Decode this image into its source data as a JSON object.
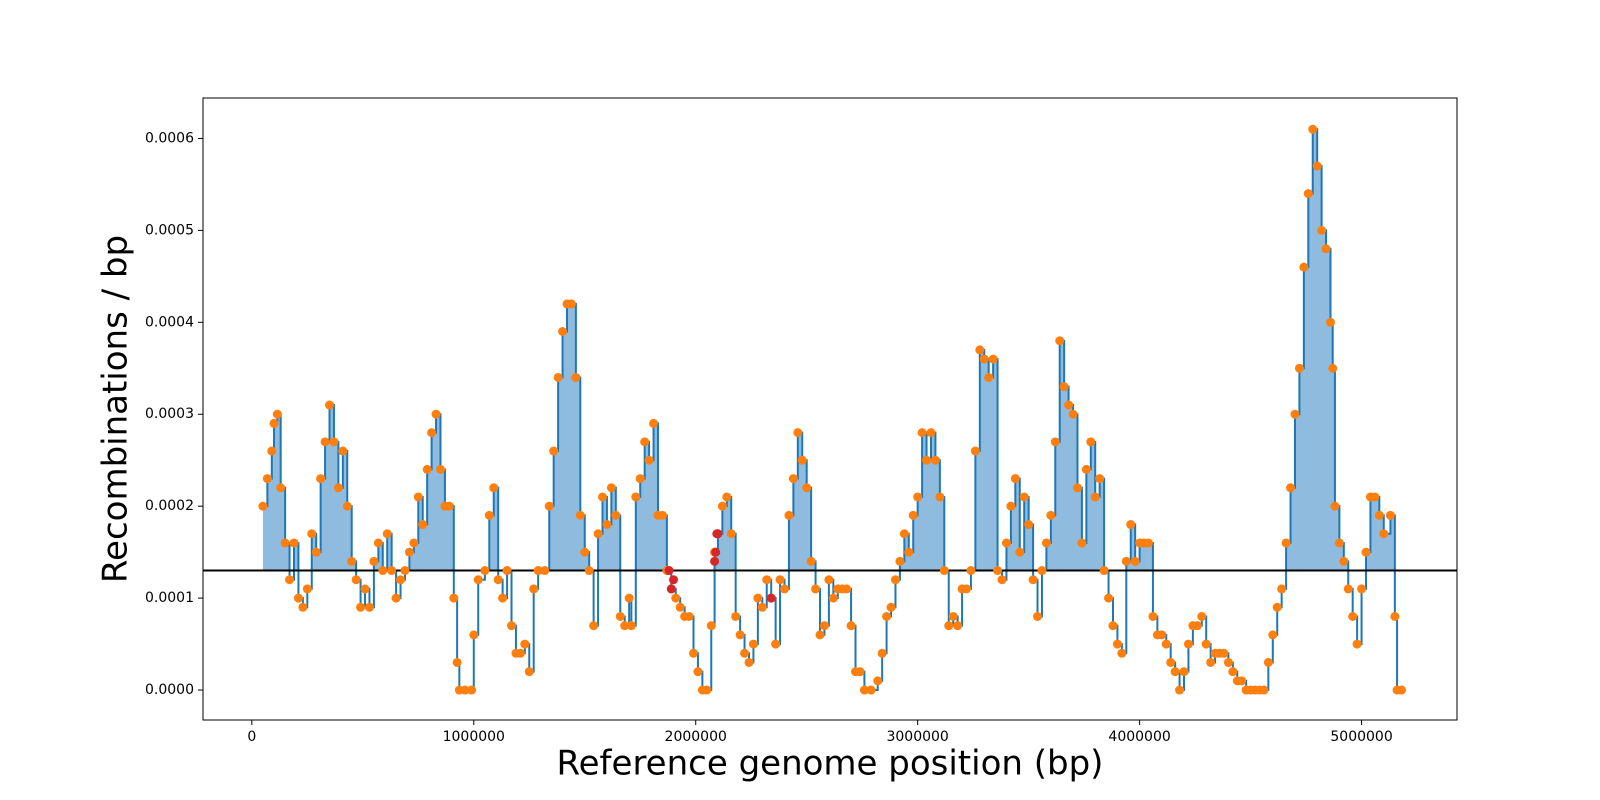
{
  "chart_data": {
    "type": "step",
    "x_label": "Reference genome position (bp)",
    "y_label": "Recombinations / bp",
    "x": [
      50000,
      70000,
      90000,
      100000,
      115000,
      130000,
      150000,
      170000,
      190000,
      210000,
      230000,
      250000,
      270000,
      290000,
      310000,
      330000,
      350000,
      370000,
      390000,
      410000,
      430000,
      450000,
      470000,
      490000,
      510000,
      530000,
      550000,
      570000,
      590000,
      610000,
      630000,
      650000,
      670000,
      690000,
      710000,
      730000,
      750000,
      770000,
      790000,
      810000,
      830000,
      850000,
      870000,
      890000,
      910000,
      925000,
      935000,
      960000,
      990000,
      1000000,
      1020000,
      1050000,
      1070000,
      1090000,
      1110000,
      1130000,
      1150000,
      1170000,
      1190000,
      1210000,
      1230000,
      1250000,
      1270000,
      1290000,
      1320000,
      1340000,
      1360000,
      1380000,
      1400000,
      1420000,
      1440000,
      1460000,
      1480000,
      1500000,
      1520000,
      1540000,
      1560000,
      1580000,
      1600000,
      1620000,
      1640000,
      1660000,
      1680000,
      1700000,
      1710000,
      1730000,
      1750000,
      1770000,
      1790000,
      1810000,
      1830000,
      1850000,
      1870000,
      1890000,
      1910000,
      1930000,
      1950000,
      1970000,
      1990000,
      2010000,
      2030000,
      2050000,
      2070000,
      2085000,
      2100000,
      2120000,
      2140000,
      2160000,
      2180000,
      2200000,
      2220000,
      2240000,
      2260000,
      2280000,
      2300000,
      2320000,
      2340000,
      2360000,
      2380000,
      2400000,
      2420000,
      2440000,
      2460000,
      2480000,
      2500000,
      2520000,
      2540000,
      2560000,
      2580000,
      2600000,
      2620000,
      2640000,
      2660000,
      2680000,
      2700000,
      2720000,
      2740000,
      2760000,
      2790000,
      2820000,
      2840000,
      2860000,
      2880000,
      2900000,
      2920000,
      2940000,
      2960000,
      2980000,
      3000000,
      3020000,
      3040000,
      3060000,
      3080000,
      3100000,
      3120000,
      3140000,
      3160000,
      3180000,
      3200000,
      3220000,
      3240000,
      3260000,
      3280000,
      3300000,
      3320000,
      3340000,
      3360000,
      3380000,
      3400000,
      3420000,
      3440000,
      3460000,
      3480000,
      3500000,
      3520000,
      3540000,
      3560000,
      3580000,
      3600000,
      3620000,
      3640000,
      3660000,
      3680000,
      3700000,
      3720000,
      3740000,
      3760000,
      3780000,
      3800000,
      3820000,
      3840000,
      3860000,
      3880000,
      3900000,
      3920000,
      3940000,
      3960000,
      3980000,
      4000000,
      4020000,
      4040000,
      4060000,
      4080000,
      4100000,
      4120000,
      4140000,
      4160000,
      4180000,
      4200000,
      4220000,
      4240000,
      4260000,
      4280000,
      4300000,
      4320000,
      4340000,
      4360000,
      4380000,
      4400000,
      4420000,
      4440000,
      4460000,
      4480000,
      4500000,
      4520000,
      4540000,
      4560000,
      4580000,
      4600000,
      4620000,
      4640000,
      4660000,
      4680000,
      4700000,
      4720000,
      4740000,
      4760000,
      4780000,
      4800000,
      4820000,
      4840000,
      4860000,
      4870000,
      4880000,
      4900000,
      4920000,
      4940000,
      4960000,
      4980000,
      5000000,
      5020000,
      5040000,
      5060000,
      5080000,
      5100000,
      5130000,
      5150000,
      5160000,
      5180000
    ],
    "values": [
      0.0002,
      0.00023,
      0.00026,
      0.00029,
      0.0003,
      0.00022,
      0.00016,
      0.00012,
      0.00016,
      0.0001,
      9e-05,
      0.00011,
      0.00017,
      0.00015,
      0.00023,
      0.00027,
      0.00031,
      0.00027,
      0.00022,
      0.00026,
      0.0002,
      0.00014,
      0.00012,
      9e-05,
      0.00011,
      9e-05,
      0.00014,
      0.00016,
      0.00013,
      0.00017,
      0.00013,
      0.0001,
      0.00012,
      0.00013,
      0.00015,
      0.00016,
      0.00021,
      0.00018,
      0.00024,
      0.00028,
      0.0003,
      0.00024,
      0.0002,
      0.0002,
      0.0001,
      3e-05,
      0,
      0,
      0,
      6e-05,
      0.00012,
      0.00013,
      0.00019,
      0.00022,
      0.00012,
      0.0001,
      0.00013,
      7e-05,
      4e-05,
      4e-05,
      5e-05,
      2e-05,
      0.00011,
      0.00013,
      0.00013,
      0.0002,
      0.00026,
      0.00034,
      0.00039,
      0.00042,
      0.00042,
      0.00034,
      0.00019,
      0.00015,
      0.00013,
      7e-05,
      0.00017,
      0.00021,
      0.00018,
      0.00022,
      0.00019,
      8e-05,
      7e-05,
      0.0001,
      7e-05,
      0.00021,
      0.00023,
      0.00027,
      0.00025,
      0.00029,
      0.00019,
      0.00019,
      0.00013,
      0.00011,
      0.0001,
      9e-05,
      8e-05,
      8e-05,
      4e-05,
      2e-05,
      0,
      0,
      7e-05,
      0.00015,
      0.00017,
      0.0002,
      0.00021,
      0.00017,
      8e-05,
      6e-05,
      4e-05,
      3e-05,
      5e-05,
      0.0001,
      9e-05,
      0.00012,
      0.0001,
      5e-05,
      0.00012,
      0.00011,
      0.00019,
      0.00023,
      0.00028,
      0.00025,
      0.00022,
      0.00014,
      0.00011,
      6e-05,
      7e-05,
      0.00012,
      0.0001,
      0.00011,
      0.00011,
      0.00011,
      7e-05,
      2e-05,
      2e-05,
      0,
      0,
      1e-05,
      4e-05,
      8e-05,
      9e-05,
      0.00012,
      0.00014,
      0.00017,
      0.00015,
      0.00019,
      0.00021,
      0.00028,
      0.00025,
      0.00028,
      0.00025,
      0.00021,
      0.00013,
      7e-05,
      8e-05,
      7e-05,
      0.00011,
      0.00011,
      0.00013,
      0.00026,
      0.00037,
      0.00036,
      0.00034,
      0.00036,
      0.00013,
      0.00012,
      0.00016,
      0.0002,
      0.00023,
      0.00015,
      0.00021,
      0.00018,
      0.00012,
      8e-05,
      0.00013,
      0.00016,
      0.00019,
      0.00027,
      0.00038,
      0.00033,
      0.00031,
      0.0003,
      0.00022,
      0.00016,
      0.00024,
      0.00027,
      0.00021,
      0.00023,
      0.00013,
      0.0001,
      7e-05,
      5e-05,
      4e-05,
      0.00014,
      0.00018,
      0.00014,
      0.00016,
      0.00016,
      0.00016,
      8e-05,
      6e-05,
      6e-05,
      5e-05,
      3e-05,
      2e-05,
      0,
      2e-05,
      5e-05,
      7e-05,
      7e-05,
      8e-05,
      5e-05,
      3e-05,
      4e-05,
      4e-05,
      4e-05,
      3e-05,
      2e-05,
      1e-05,
      1e-05,
      0,
      0,
      0,
      0,
      0,
      3e-05,
      6e-05,
      9e-05,
      0.00011,
      0.00016,
      0.00022,
      0.0003,
      0.00035,
      0.00046,
      0.00054,
      0.00061,
      0.00057,
      0.0005,
      0.00048,
      0.0004,
      0.00035,
      0.0002,
      0.00016,
      0.00014,
      0.00011,
      8e-05,
      5e-05,
      0.00011,
      0.00015,
      0.00021,
      0.00021,
      0.00019,
      0.00017,
      0.00019,
      8e-05,
      0,
      0
    ],
    "line_color": "#1f77b4",
    "marker_color": "#ff7f0e",
    "fill_color": "#8fbbdf",
    "highlight": {
      "x": [
        1880000,
        1890000,
        1900000,
        2085000,
        2090000,
        2095000,
        2100000,
        2340000
      ],
      "values": [
        0.00013,
        0.00011,
        0.00012,
        0.00014,
        0.00015,
        0.00017,
        0.00017,
        0.0001
      ],
      "color": "#d62728"
    },
    "threshold": 0.00013,
    "threshold_color": "#000000",
    "xlim": [
      -220000,
      5430000
    ],
    "ylim": [
      -3.26e-05,
      0.000644
    ],
    "xticks": [
      0,
      1000000,
      2000000,
      3000000,
      4000000,
      5000000
    ],
    "yticks": [
      {
        "value": 0,
        "label": "0.0000"
      },
      0.0001,
      0.0002,
      0.0003,
      0.0004,
      0.0005,
      0.0006
    ]
  }
}
